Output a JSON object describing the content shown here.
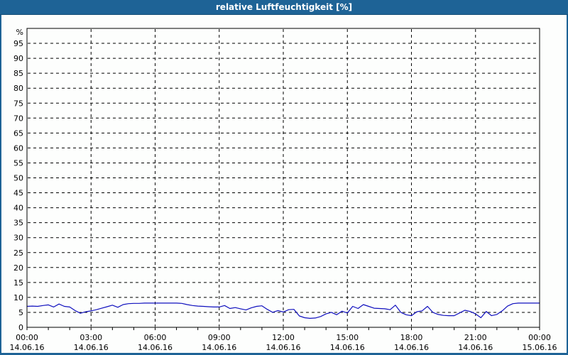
{
  "window": {
    "title": "relative Luftfeuchtigkeit [%]"
  },
  "colors": {
    "titlebar_bg": "#1e6396",
    "titlebar_text": "#ffffff",
    "window_border": "#1e6396",
    "plot_background": "#fdfefd",
    "plot_border": "#000000",
    "gridline": "#000000",
    "axis_text": "#000000",
    "series_line": "#1010be"
  },
  "chart_data": {
    "type": "line",
    "title": "relative Luftfeuchtigkeit [%]",
    "ylabel": "%",
    "y_unit_label": "%",
    "ylim": [
      0,
      100
    ],
    "y_tick_values": [
      0,
      5,
      10,
      15,
      20,
      25,
      30,
      35,
      40,
      45,
      50,
      55,
      60,
      65,
      70,
      75,
      80,
      85,
      90,
      95
    ],
    "xlim_hours": [
      0,
      24
    ],
    "x_minor_tick_every_hours": 1,
    "grid": "dashed",
    "legend": "none",
    "x_ticks": [
      {
        "hour": 0,
        "time": "00:00",
        "date": "14.06.16"
      },
      {
        "hour": 3,
        "time": "03:00",
        "date": "14.06.16"
      },
      {
        "hour": 6,
        "time": "06:00",
        "date": "14.06.16"
      },
      {
        "hour": 9,
        "time": "09:00",
        "date": "14.06.16"
      },
      {
        "hour": 12,
        "time": "12:00",
        "date": "14.06.16"
      },
      {
        "hour": 15,
        "time": "15:00",
        "date": "14.06.16"
      },
      {
        "hour": 18,
        "time": "18:00",
        "date": "14.06.16"
      },
      {
        "hour": 21,
        "time": "21:00",
        "date": "14.06.16"
      },
      {
        "hour": 24,
        "time": "00:00",
        "date": "15.06.16"
      }
    ],
    "series": [
      {
        "name": "relative Luftfeuchtigkeit",
        "color": "#1010be",
        "points": [
          [
            0.0,
            7.0
          ],
          [
            0.25,
            7.1
          ],
          [
            0.5,
            7.0
          ],
          [
            0.75,
            7.3
          ],
          [
            1.0,
            7.5
          ],
          [
            1.25,
            6.8
          ],
          [
            1.5,
            7.8
          ],
          [
            1.75,
            7.0
          ],
          [
            2.0,
            6.8
          ],
          [
            2.25,
            5.6
          ],
          [
            2.5,
            4.7
          ],
          [
            2.75,
            5.2
          ],
          [
            3.0,
            5.5
          ],
          [
            3.25,
            5.9
          ],
          [
            3.5,
            6.4
          ],
          [
            3.75,
            6.9
          ],
          [
            4.0,
            7.4
          ],
          [
            4.25,
            6.7
          ],
          [
            4.5,
            7.6
          ],
          [
            4.75,
            7.9
          ],
          [
            5.0,
            8.0
          ],
          [
            5.25,
            8.0
          ],
          [
            5.5,
            8.1
          ],
          [
            5.75,
            8.1
          ],
          [
            6.0,
            8.1
          ],
          [
            6.25,
            8.1
          ],
          [
            6.5,
            8.1
          ],
          [
            6.75,
            8.1
          ],
          [
            7.0,
            8.1
          ],
          [
            7.25,
            8.0
          ],
          [
            7.5,
            7.6
          ],
          [
            7.75,
            7.3
          ],
          [
            8.0,
            7.1
          ],
          [
            8.25,
            7.0
          ],
          [
            8.5,
            6.9
          ],
          [
            8.75,
            6.8
          ],
          [
            9.0,
            6.8
          ],
          [
            9.25,
            7.3
          ],
          [
            9.5,
            6.3
          ],
          [
            9.75,
            6.6
          ],
          [
            10.0,
            6.2
          ],
          [
            10.25,
            5.8
          ],
          [
            10.5,
            6.5
          ],
          [
            10.75,
            7.0
          ],
          [
            11.0,
            7.2
          ],
          [
            11.25,
            6.0
          ],
          [
            11.5,
            5.0
          ],
          [
            11.75,
            5.6
          ],
          [
            12.0,
            5.1
          ],
          [
            12.25,
            5.9
          ],
          [
            12.5,
            6.0
          ],
          [
            12.75,
            3.8
          ],
          [
            13.0,
            3.2
          ],
          [
            13.25,
            3.0
          ],
          [
            13.5,
            3.1
          ],
          [
            13.75,
            3.6
          ],
          [
            14.0,
            4.5
          ],
          [
            14.25,
            5.0
          ],
          [
            14.5,
            4.2
          ],
          [
            14.75,
            5.4
          ],
          [
            15.0,
            4.8
          ],
          [
            15.25,
            7.0
          ],
          [
            15.5,
            6.3
          ],
          [
            15.75,
            7.6
          ],
          [
            16.0,
            7.0
          ],
          [
            16.25,
            6.4
          ],
          [
            16.5,
            6.3
          ],
          [
            16.75,
            6.2
          ],
          [
            17.0,
            5.9
          ],
          [
            17.25,
            7.4
          ],
          [
            17.5,
            5.0
          ],
          [
            17.75,
            4.2
          ],
          [
            18.0,
            3.9
          ],
          [
            18.25,
            5.2
          ],
          [
            18.5,
            5.5
          ],
          [
            18.75,
            7.0
          ],
          [
            19.0,
            5.0
          ],
          [
            19.25,
            4.3
          ],
          [
            19.5,
            4.0
          ],
          [
            19.75,
            3.9
          ],
          [
            20.0,
            3.9
          ],
          [
            20.25,
            4.8
          ],
          [
            20.5,
            5.7
          ],
          [
            20.75,
            5.3
          ],
          [
            21.0,
            4.5
          ],
          [
            21.25,
            3.2
          ],
          [
            21.5,
            5.3
          ],
          [
            21.75,
            3.9
          ],
          [
            22.0,
            4.3
          ],
          [
            22.25,
            5.5
          ],
          [
            22.5,
            7.1
          ],
          [
            22.75,
            7.9
          ],
          [
            23.0,
            8.1
          ],
          [
            23.25,
            8.1
          ],
          [
            23.5,
            8.1
          ],
          [
            23.75,
            8.1
          ],
          [
            24.0,
            8.1
          ]
        ]
      }
    ]
  }
}
